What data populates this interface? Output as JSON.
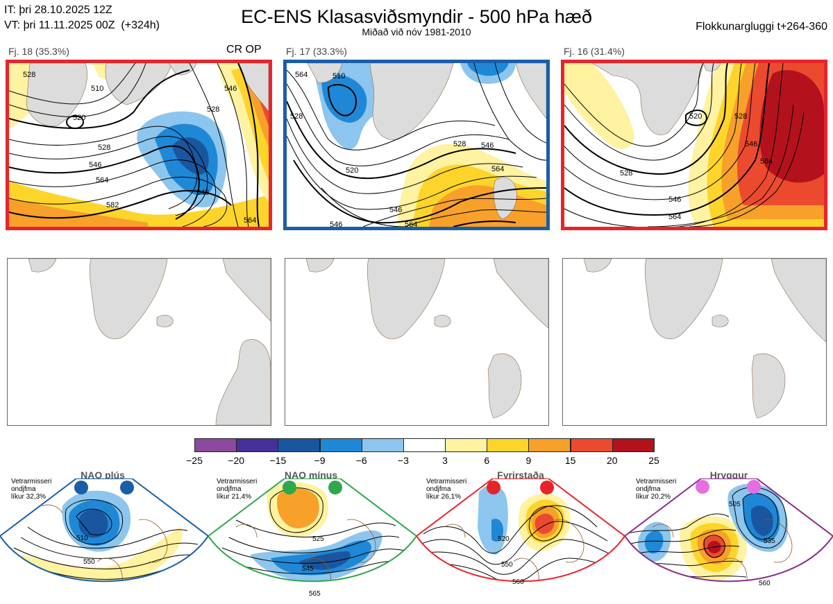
{
  "header": {
    "it_line": "IT: þri 28.10.2025 12Z",
    "vt_line": "VT: þri 11.11.2025 00Z  (+324h)",
    "title": "EC-ENS Klasasviðsmyndir - 500 hPa hæð",
    "subtitle": "Miðað við nóv 1981-2010",
    "window": "Flokkunargluggi t+264-360"
  },
  "clusters": [
    {
      "label": "Fj. 18 (35.3%)",
      "tag": "CR OP",
      "frame_color": "#e8242b",
      "contours": [
        "528",
        "546",
        "564",
        "582",
        "520",
        "510",
        "546",
        "528",
        "528",
        "546",
        "564"
      ]
    },
    {
      "label": "Fj. 17 (33.3%)",
      "tag": "",
      "frame_color": "#1a5ea8",
      "contours": [
        "510",
        "528",
        "546",
        "520",
        "546",
        "564",
        "564",
        "546",
        "564",
        "528"
      ]
    },
    {
      "label": "Fj. 16 (31.4%)",
      "tag": "",
      "frame_color": "#e8242b",
      "contours": [
        "520",
        "528",
        "546",
        "564",
        "528",
        "546",
        "564"
      ]
    }
  ],
  "colorbar": {
    "ticks": [
      "-25",
      "-20",
      "-15",
      "-9",
      "-6",
      "-3",
      "3",
      "6",
      "9",
      "15",
      "20",
      "25"
    ],
    "colors": [
      "#8c4a9e",
      "#47309a",
      "#1a56a0",
      "#1f88d6",
      "#8cc6ee",
      "#ffffff",
      "#fff2a0",
      "#fdd52a",
      "#f7a02a",
      "#ec4a2f",
      "#b3121c"
    ]
  },
  "regimes": [
    {
      "name": "NAO plús",
      "desc": "Vetrarmisseri\nondjfma\nlíkur 32,3%",
      "color": "#1a5ea8",
      "dot_color": "#1a5ea8",
      "contours": [
        "510",
        "550"
      ]
    },
    {
      "name": "NAO mínus",
      "desc": "Vetrarmisseri\nondjfma\nlíkur 21,4%",
      "color": "#2ea84a",
      "dot_color": "#2ea84a",
      "contours": [
        "525",
        "545",
        "565"
      ]
    },
    {
      "name": "Fyrirstaða",
      "desc": "Vetrarmisseri\nondjfma\nlíkur 26,1%",
      "color": "#e8242b",
      "dot_color": "#e8242b",
      "contours": [
        "520",
        "550",
        "560"
      ]
    },
    {
      "name": "Hryggur",
      "desc": "Vetrarmisseri\nondjfma\nlíkur 20,2%",
      "color": "#8a2c8c",
      "dot_color": "#e66ee0",
      "contours": [
        "505",
        "535",
        "560"
      ]
    }
  ]
}
